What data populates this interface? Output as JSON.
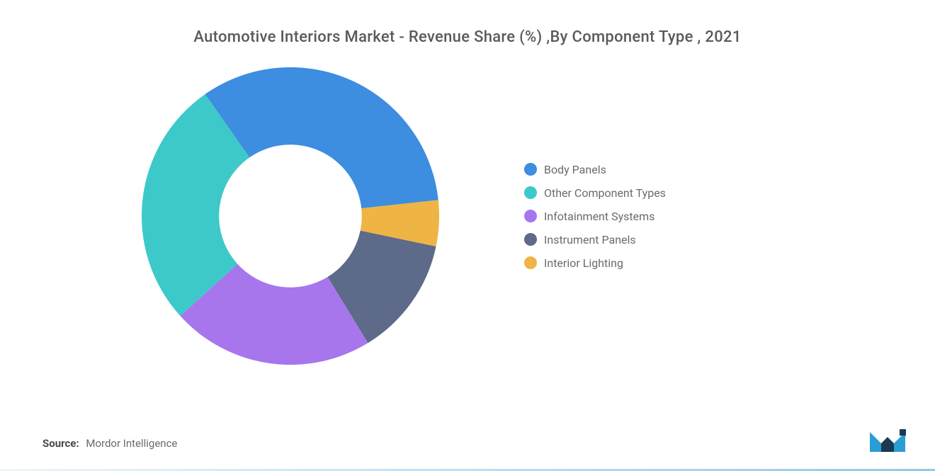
{
  "title": "Automotive Interiors Market - Revenue Share (%) ,By Component Type , 2021",
  "chart": {
    "type": "donut",
    "inner_radius_ratio": 0.48,
    "outer_radius": 210,
    "background_color": "#ffffff",
    "slices": [
      {
        "label": "Body Panels",
        "value": 33,
        "color": "#3d8de0"
      },
      {
        "label": "Interior Lighting",
        "value": 5,
        "color": "#eeb444"
      },
      {
        "label": "Instrument Panels",
        "value": 13,
        "color": "#5d6a8a"
      },
      {
        "label": "Infotainment Systems",
        "value": 22,
        "color": "#a776ed"
      },
      {
        "label": "Other Component Types",
        "value": 27,
        "color": "#3dc9ca"
      }
    ],
    "start_angle_deg": -35
  },
  "legend": {
    "items": [
      {
        "label": "Body Panels",
        "color": "#3d8de0"
      },
      {
        "label": "Other Component Types",
        "color": "#3dc9ca"
      },
      {
        "label": "Infotainment Systems",
        "color": "#a776ed"
      },
      {
        "label": "Instrument Panels",
        "color": "#5d6a8a"
      },
      {
        "label": "Interior Lighting",
        "color": "#eeb444"
      }
    ],
    "dot_size": 18,
    "font_size": 16,
    "text_color": "#6b6b6b"
  },
  "source": {
    "label": "Source:",
    "value": "Mordor Intelligence"
  },
  "logo": {
    "color_fill": "#2a9dd6",
    "color_dark": "#1a3a52"
  }
}
